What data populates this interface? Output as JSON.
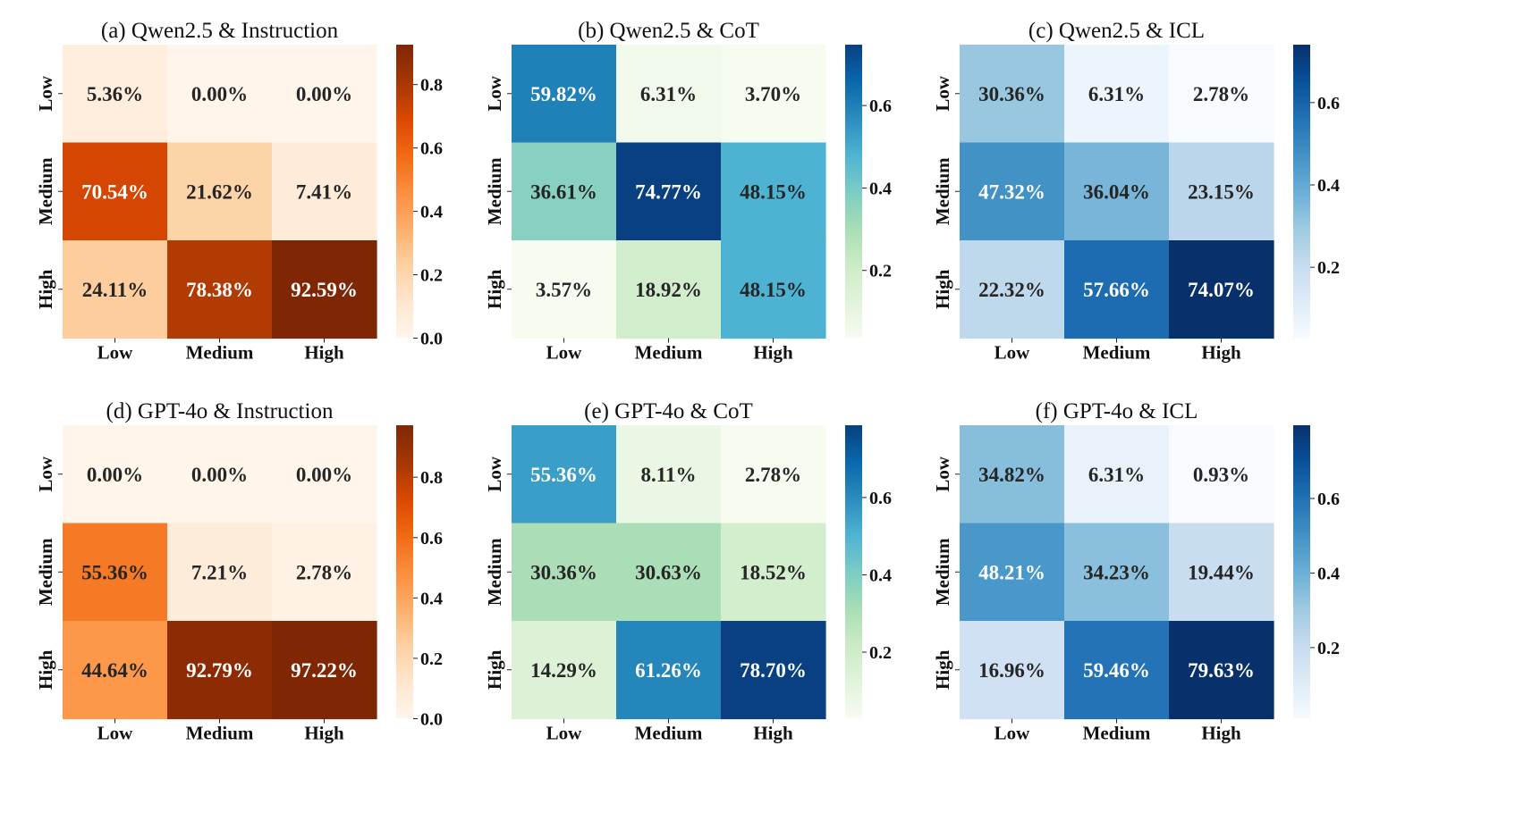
{
  "chart_data": [
    {
      "type": "heatmap",
      "title": "(a) Qwen2.5 & Instruction",
      "xlabel": "",
      "ylabel": "",
      "x_categories": [
        "Low",
        "Medium",
        "High"
      ],
      "y_categories": [
        "Low",
        "Medium",
        "High"
      ],
      "cmap": "Oranges",
      "values": [
        [
          5.36,
          0.0,
          0.0
        ],
        [
          70.54,
          21.62,
          7.41
        ],
        [
          24.11,
          78.38,
          92.59
        ]
      ],
      "labels": [
        [
          "5.36%",
          "0.00%",
          "0.00%"
        ],
        [
          "70.54%",
          "21.62%",
          "7.41%"
        ],
        [
          "24.11%",
          "78.38%",
          "92.59%"
        ]
      ],
      "colorbar": {
        "range": [
          0,
          0.9259
        ],
        "ticks": [
          0.0,
          0.2,
          0.4,
          0.6,
          0.8
        ],
        "tick_labels": [
          "0.0",
          "0.2",
          "0.4",
          "0.6",
          "0.8"
        ]
      }
    },
    {
      "type": "heatmap",
      "title": "(b) Qwen2.5 & CoT",
      "xlabel": "",
      "ylabel": "",
      "x_categories": [
        "Low",
        "Medium",
        "High"
      ],
      "y_categories": [
        "Low",
        "Medium",
        "High"
      ],
      "cmap": "GnBu",
      "values": [
        [
          59.82,
          6.31,
          3.7
        ],
        [
          36.61,
          74.77,
          48.15
        ],
        [
          3.57,
          18.92,
          48.15
        ]
      ],
      "labels": [
        [
          "59.82%",
          "6.31%",
          "3.70%"
        ],
        [
          "36.61%",
          "74.77%",
          "48.15%"
        ],
        [
          "3.57%",
          "18.92%",
          "48.15%"
        ]
      ],
      "colorbar": {
        "range": [
          0.0357,
          0.7477
        ],
        "ticks": [
          0.2,
          0.4,
          0.6
        ],
        "tick_labels": [
          "0.2",
          "0.4",
          "0.6"
        ]
      }
    },
    {
      "type": "heatmap",
      "title": "(c) Qwen2.5 & ICL",
      "xlabel": "",
      "ylabel": "",
      "x_categories": [
        "Low",
        "Medium",
        "High"
      ],
      "y_categories": [
        "Low",
        "Medium",
        "High"
      ],
      "cmap": "Blues",
      "values": [
        [
          30.36,
          6.31,
          2.78
        ],
        [
          47.32,
          36.04,
          23.15
        ],
        [
          22.32,
          57.66,
          74.07
        ]
      ],
      "labels": [
        [
          "30.36%",
          "6.31%",
          "2.78%"
        ],
        [
          "47.32%",
          "36.04%",
          "23.15%"
        ],
        [
          "22.32%",
          "57.66%",
          "74.07%"
        ]
      ],
      "colorbar": {
        "range": [
          0.0278,
          0.7407
        ],
        "ticks": [
          0.2,
          0.4,
          0.6
        ],
        "tick_labels": [
          "0.2",
          "0.4",
          "0.6"
        ]
      }
    },
    {
      "type": "heatmap",
      "title": "(d) GPT-4o & Instruction",
      "xlabel": "",
      "ylabel": "",
      "x_categories": [
        "Low",
        "Medium",
        "High"
      ],
      "y_categories": [
        "Low",
        "Medium",
        "High"
      ],
      "cmap": "Oranges",
      "values": [
        [
          0.0,
          0.0,
          0.0
        ],
        [
          55.36,
          7.21,
          2.78
        ],
        [
          44.64,
          92.79,
          97.22
        ]
      ],
      "labels": [
        [
          "0.00%",
          "0.00%",
          "0.00%"
        ],
        [
          "55.36%",
          "7.21%",
          "2.78%"
        ],
        [
          "44.64%",
          "92.79%",
          "97.22%"
        ]
      ],
      "colorbar": {
        "range": [
          0,
          0.9722
        ],
        "ticks": [
          0.0,
          0.2,
          0.4,
          0.6,
          0.8
        ],
        "tick_labels": [
          "0.0",
          "0.2",
          "0.4",
          "0.6",
          "0.8"
        ]
      }
    },
    {
      "type": "heatmap",
      "title": "(e) GPT-4o & CoT",
      "xlabel": "",
      "ylabel": "",
      "x_categories": [
        "Low",
        "Medium",
        "High"
      ],
      "y_categories": [
        "Low",
        "Medium",
        "High"
      ],
      "cmap": "GnBu",
      "values": [
        [
          55.36,
          8.11,
          2.78
        ],
        [
          30.36,
          30.63,
          18.52
        ],
        [
          14.29,
          61.26,
          78.7
        ]
      ],
      "labels": [
        [
          "55.36%",
          "8.11%",
          "2.78%"
        ],
        [
          "30.36%",
          "30.63%",
          "18.52%"
        ],
        [
          "14.29%",
          "61.26%",
          "78.70%"
        ]
      ],
      "colorbar": {
        "range": [
          0.0278,
          0.787
        ],
        "ticks": [
          0.2,
          0.4,
          0.6
        ],
        "tick_labels": [
          "0.2",
          "0.4",
          "0.6"
        ]
      }
    },
    {
      "type": "heatmap",
      "title": "(f) GPT-4o & ICL",
      "xlabel": "",
      "ylabel": "",
      "x_categories": [
        "Low",
        "Medium",
        "High"
      ],
      "y_categories": [
        "Low",
        "Medium",
        "High"
      ],
      "cmap": "Blues",
      "values": [
        [
          34.82,
          6.31,
          0.93
        ],
        [
          48.21,
          34.23,
          19.44
        ],
        [
          16.96,
          59.46,
          79.63
        ]
      ],
      "labels": [
        [
          "34.82%",
          "6.31%",
          "0.93%"
        ],
        [
          "48.21%",
          "34.23%",
          "19.44%"
        ],
        [
          "16.96%",
          "59.46%",
          "79.63%"
        ]
      ],
      "colorbar": {
        "range": [
          0.0093,
          0.7963
        ],
        "ticks": [
          0.2,
          0.4,
          0.6
        ],
        "tick_labels": [
          "0.2",
          "0.4",
          "0.6"
        ]
      }
    }
  ]
}
